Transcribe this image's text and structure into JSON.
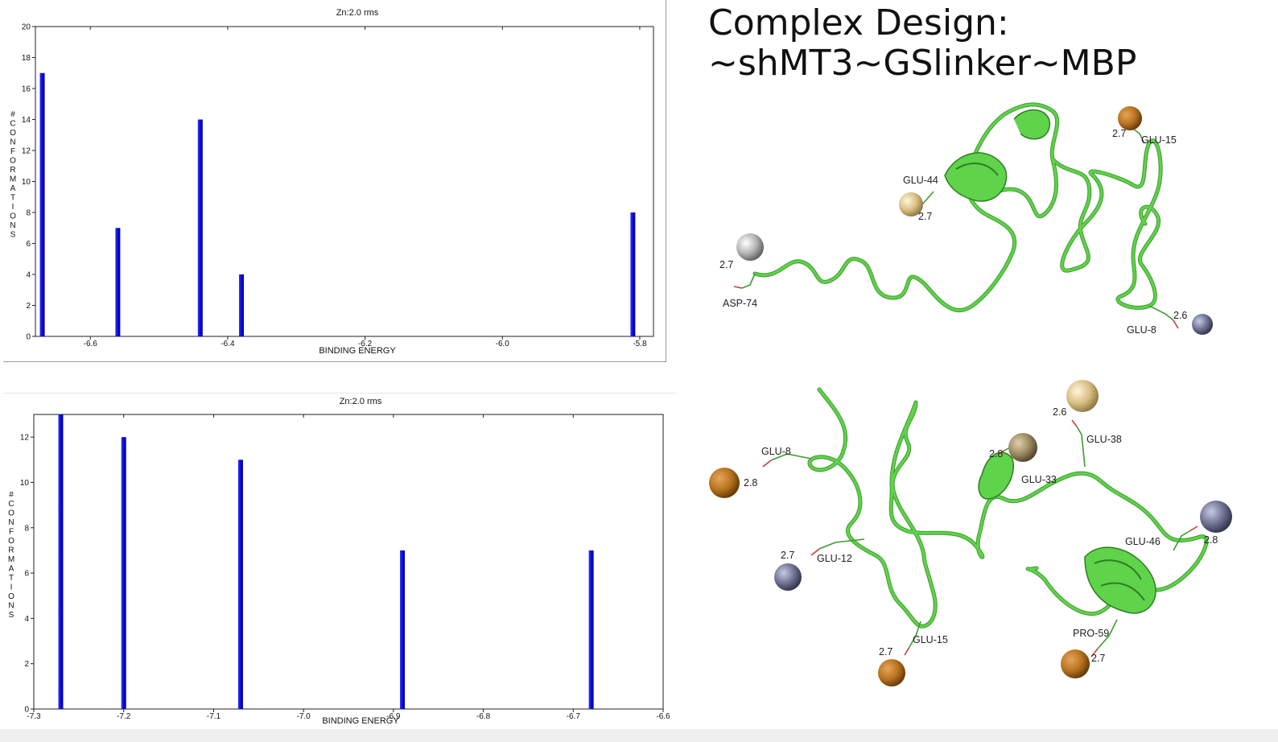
{
  "slide": {
    "title_line1": "Complex Design:",
    "title_line2": "~shMT3~GSlinker~MBP"
  },
  "chart_data": [
    {
      "type": "bar",
      "title": "Zn:2.0 rms",
      "xlabel": "BINDING ENERGY",
      "ylabel": "#CONFORMATIONS",
      "xlim": [
        -6.68,
        -5.78
      ],
      "ylim": [
        0,
        20
      ],
      "xticks": [
        -6.6,
        -6.4,
        -6.2,
        -6.0,
        -5.8
      ],
      "xtick_labels": [
        "-6.6",
        "-6.4",
        "-6.2",
        "-6.0",
        "-5.8"
      ],
      "yticks": [
        0,
        2,
        4,
        6,
        8,
        10,
        12,
        14,
        16,
        18,
        20
      ],
      "x": [
        -6.67,
        -6.56,
        -6.44,
        -6.38,
        -5.81
      ],
      "values": [
        17,
        7,
        14,
        4,
        8
      ],
      "bar_color": "#0a0ad8"
    },
    {
      "type": "bar",
      "title": "Zn:2.0 rms",
      "xlabel": "BINDING ENERGY",
      "ylabel": "#CONFORMATIONS",
      "xlim": [
        -7.3,
        -6.6
      ],
      "ylim": [
        0,
        13
      ],
      "xticks": [
        -7.3,
        -7.2,
        -7.1,
        -7.0,
        -6.9,
        -6.8,
        -6.7,
        -6.6
      ],
      "xtick_labels": [
        "-7.3",
        "-7.2",
        "-7.1",
        "-7.0",
        "-6.9",
        "-6.8",
        "-6.7",
        "-6.6"
      ],
      "yticks": [
        0,
        2,
        4,
        6,
        8,
        10,
        12
      ],
      "x": [
        -7.27,
        -7.2,
        -7.07,
        -6.89,
        -6.68
      ],
      "values": [
        13,
        12,
        11,
        7,
        7
      ],
      "bar_color": "#0a0ad8"
    }
  ],
  "structure_top": {
    "residue_labels": [
      "GLU-44",
      "GLU-15",
      "ASP-74",
      "GLU-8"
    ],
    "distance_labels": [
      "2.7",
      "2.7",
      "2.7",
      "2.6"
    ],
    "colors": {
      "ribbon": "#5fd34a",
      "ion_tan": "#d9c083",
      "ion_orange": "#b8741f",
      "ion_gray": "#a9a9a9",
      "ion_slate": "#6f7291"
    }
  },
  "structure_bottom": {
    "residue_labels": [
      "GLU-8",
      "GLU-33",
      "GLU-38",
      "GLU-12",
      "GLU-46",
      "GLU-15",
      "PRO-59"
    ],
    "distance_labels": [
      "2.8",
      "2.8",
      "2.6",
      "2.7",
      "2.8",
      "2.7",
      "2.7"
    ],
    "colors": {
      "ribbon": "#5fd34a",
      "ion_tan": "#d9c083",
      "ion_orange": "#b8741f",
      "ion_slate": "#6f7291",
      "ion_khaki": "#9c8b63"
    }
  }
}
